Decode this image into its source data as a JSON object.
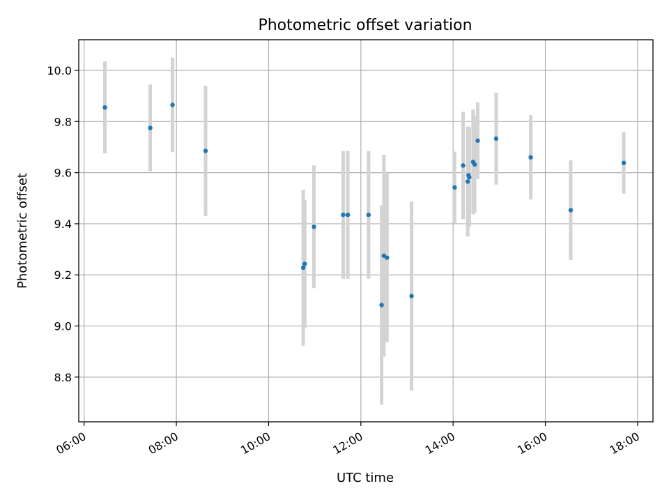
{
  "chart_data": {
    "type": "scatter",
    "title": "Photometric offset variation",
    "xlabel": "UTC time",
    "ylabel": "Photometric offset",
    "x_tick_labels": [
      "06:00",
      "08:00",
      "10:00",
      "12:00",
      "14:00",
      "16:00",
      "18:00"
    ],
    "y_tick_labels": [
      "8.8",
      "9.0",
      "9.2",
      "9.4",
      "9.6",
      "9.8",
      "10.0"
    ],
    "x_tick_values": [
      "06:00",
      "08:00",
      "10:00",
      "12:00",
      "14:00",
      "16:00",
      "18:00"
    ],
    "y_tick_values": [
      8.8,
      9.0,
      9.2,
      9.4,
      9.6,
      9.8,
      10.0
    ],
    "xlim": [
      "05:53",
      "18:20"
    ],
    "ylim": [
      8.625,
      10.12
    ],
    "grid": true,
    "colors": {
      "point": "#1f77b4",
      "errorbar": "#d3d3d3"
    },
    "points": [
      {
        "x": "06:27",
        "y": 9.855,
        "err": 0.18
      },
      {
        "x": "07:26",
        "y": 9.775,
        "err": 0.17
      },
      {
        "x": "07:55",
        "y": 9.865,
        "err": 0.185
      },
      {
        "x": "08:38",
        "y": 9.685,
        "err": 0.255
      },
      {
        "x": "10:45",
        "y": 9.228,
        "err": 0.305
      },
      {
        "x": "10:47",
        "y": 9.243,
        "err": 0.25
      },
      {
        "x": "10:59",
        "y": 9.388,
        "err": 0.24
      },
      {
        "x": "11:37",
        "y": 9.435,
        "err": 0.25
      },
      {
        "x": "11:43",
        "y": 9.435,
        "err": 0.25
      },
      {
        "x": "12:10",
        "y": 9.435,
        "err": 0.25
      },
      {
        "x": "12:27",
        "y": 9.082,
        "err": 0.39
      },
      {
        "x": "12:30",
        "y": 9.275,
        "err": 0.395
      },
      {
        "x": "12:34",
        "y": 9.267,
        "err": 0.33
      },
      {
        "x": "13:06",
        "y": 9.117,
        "err": 0.37
      },
      {
        "x": "14:02",
        "y": 9.542,
        "err": 0.14
      },
      {
        "x": "14:13",
        "y": 9.628,
        "err": 0.21
      },
      {
        "x": "14:19",
        "y": 9.565,
        "err": 0.215
      },
      {
        "x": "14:20",
        "y": 9.59,
        "err": 0.19
      },
      {
        "x": "14:21",
        "y": 9.582,
        "err": 0.195
      },
      {
        "x": "14:26",
        "y": 9.642,
        "err": 0.205
      },
      {
        "x": "14:28",
        "y": 9.632,
        "err": 0.19
      },
      {
        "x": "14:32",
        "y": 9.725,
        "err": 0.15
      },
      {
        "x": "14:56",
        "y": 9.733,
        "err": 0.18
      },
      {
        "x": "15:41",
        "y": 9.66,
        "err": 0.165
      },
      {
        "x": "16:33",
        "y": 9.453,
        "err": 0.195
      },
      {
        "x": "17:42",
        "y": 9.638,
        "err": 0.12
      }
    ]
  }
}
